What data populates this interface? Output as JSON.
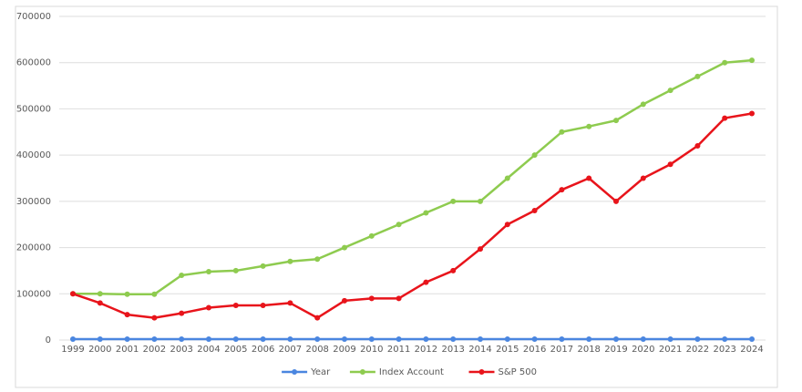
{
  "chart_data": {
    "type": "line",
    "categories": [
      "1999",
      "2000",
      "2001",
      "2002",
      "2003",
      "2004",
      "2005",
      "2006",
      "2007",
      "2008",
      "2009",
      "2010",
      "2011",
      "2012",
      "2013",
      "2014",
      "2015",
      "2016",
      "2017",
      "2018",
      "2019",
      "2020",
      "2021",
      "2022",
      "2023",
      "2024"
    ],
    "series": [
      {
        "name": "Year",
        "color": "#4a86e0",
        "values": [
          1999,
          2000,
          2001,
          2002,
          2003,
          2004,
          2005,
          2006,
          2007,
          2008,
          2009,
          2010,
          2011,
          2012,
          2013,
          2014,
          2015,
          2016,
          2017,
          2018,
          2019,
          2020,
          2021,
          2022,
          2023,
          2024
        ]
      },
      {
        "name": "Index Account",
        "color": "#8ecb4f",
        "values": [
          100000,
          100000,
          99000,
          99000,
          140000,
          148000,
          150000,
          160000,
          170000,
          175000,
          200000,
          225000,
          250000,
          275000,
          300000,
          300000,
          350000,
          400000,
          450000,
          462000,
          475000,
          510000,
          540000,
          570000,
          600000,
          605000
        ]
      },
      {
        "name": "S&P 500",
        "color": "#e8141b",
        "values": [
          100000,
          80000,
          55000,
          48000,
          58000,
          70000,
          75000,
          75000,
          80000,
          48000,
          85000,
          90000,
          90000,
          125000,
          150000,
          197000,
          250000,
          280000,
          325000,
          350000,
          300000,
          350000,
          380000,
          420000,
          480000,
          490000
        ]
      }
    ],
    "ylim": [
      0,
      700000
    ],
    "yticks": [
      0,
      100000,
      200000,
      300000,
      400000,
      500000,
      600000,
      700000
    ],
    "grid": true,
    "legend": "bottom"
  }
}
